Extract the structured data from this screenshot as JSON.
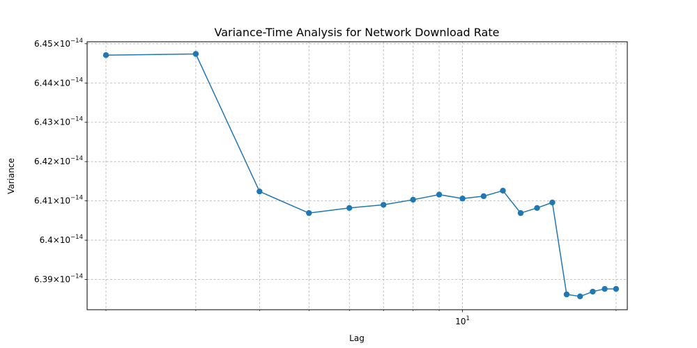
{
  "chart_data": {
    "type": "line",
    "title": "Variance-Time Analysis for Network Download Rate",
    "xlabel": "Lag",
    "ylabel": "Variance",
    "x_scale": "log",
    "xlim": [
      1.837,
      21.04
    ],
    "ylim": [
      6.3823e-14,
      6.4505e-14
    ],
    "y_ticks": [
      {
        "value": 6.39e-14,
        "mantissa": "6.39",
        "exponent": "−14"
      },
      {
        "value": 6.4e-14,
        "mantissa": "6.4",
        "exponent": "−14"
      },
      {
        "value": 6.41e-14,
        "mantissa": "6.41",
        "exponent": "−14"
      },
      {
        "value": 6.42e-14,
        "mantissa": "6.42",
        "exponent": "−14"
      },
      {
        "value": 6.43e-14,
        "mantissa": "6.43",
        "exponent": "−14"
      },
      {
        "value": 6.44e-14,
        "mantissa": "6.44",
        "exponent": "−14"
      },
      {
        "value": 6.45e-14,
        "mantissa": "6.45",
        "exponent": "−14"
      }
    ],
    "x_major_ticks": [
      {
        "value": 10,
        "base": "10",
        "exponent": "1"
      }
    ],
    "x_minor_ticks": [
      2,
      3,
      4,
      5,
      6,
      7,
      8,
      9,
      20
    ],
    "grid": true,
    "series": [
      {
        "color": "#1f77b4",
        "marker": "circle",
        "x": [
          2,
          3,
          4,
          5,
          6,
          7,
          8,
          9,
          10,
          11,
          12,
          13,
          14,
          15,
          16,
          17,
          18,
          19,
          20
        ],
        "y": [
          6.4471e-14,
          6.4474e-14,
          6.4124e-14,
          6.4069e-14,
          6.4082e-14,
          6.409e-14,
          6.4103e-14,
          6.4116e-14,
          6.4106e-14,
          6.4112e-14,
          6.4126e-14,
          6.4069e-14,
          6.4082e-14,
          6.4096e-14,
          6.3862e-14,
          6.3857e-14,
          6.3869e-14,
          6.3876e-14,
          6.3876e-14
        ]
      }
    ]
  }
}
